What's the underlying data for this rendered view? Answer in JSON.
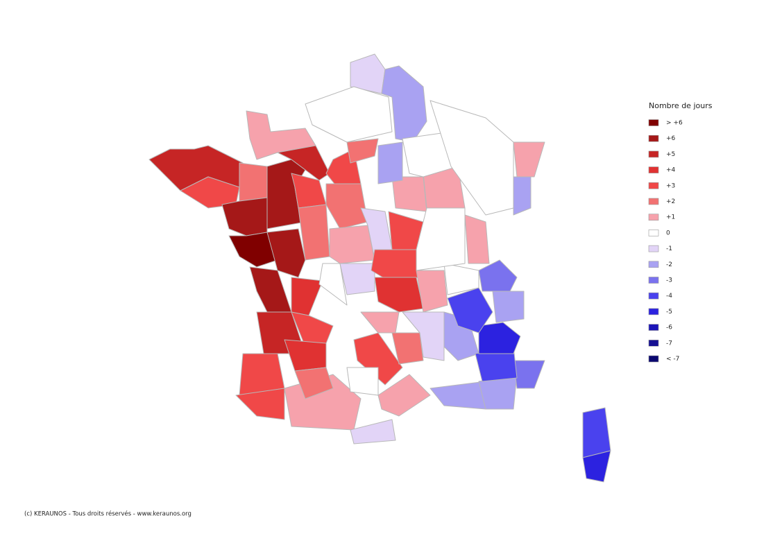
{
  "map": {
    "areas": [
      -1,
      -2,
      1,
      5,
      3,
      2,
      6,
      7,
      6,
      5,
      3,
      3,
      6,
      6,
      2,
      2,
      1,
      -1,
      3,
      4,
      0,
      -1,
      3,
      4,
      5,
      3,
      3,
      3,
      4,
      1,
      2,
      3,
      1,
      0,
      1,
      -1,
      2,
      -1,
      -2,
      -2,
      -2,
      -3,
      -4,
      -5,
      -4,
      -2,
      -3,
      1,
      0,
      1,
      1,
      0,
      -2,
      2,
      0,
      1,
      -2,
      0,
      1,
      0,
      -4,
      -5
    ]
  },
  "legend": {
    "title": "Nombre de jours",
    "items": [
      {
        "label": "> +6",
        "color": "#800000"
      },
      {
        "label": "+6",
        "color": "#a51818"
      },
      {
        "label": "+5",
        "color": "#c62525"
      },
      {
        "label": "+4",
        "color": "#e03232"
      },
      {
        "label": "+3",
        "color": "#f04848"
      },
      {
        "label": "+2",
        "color": "#f27272"
      },
      {
        "label": "+1",
        "color": "#f6a2ac"
      },
      {
        "label": "0",
        "color": "#ffffff"
      },
      {
        "label": "-1",
        "color": "#e2d4f7"
      },
      {
        "label": "-2",
        "color": "#a9a2f2"
      },
      {
        "label": "-3",
        "color": "#7a72ee"
      },
      {
        "label": "-4",
        "color": "#4a42ee"
      },
      {
        "label": "-5",
        "color": "#2c22e0"
      },
      {
        "label": "-6",
        "color": "#1d16b8"
      },
      {
        "label": "-7",
        "color": "#161092"
      },
      {
        "label": "< -7",
        "color": "#0a0870"
      }
    ]
  },
  "footer": "(c) KERAUNOS - Tous droits réservés - www.keraunos.org"
}
